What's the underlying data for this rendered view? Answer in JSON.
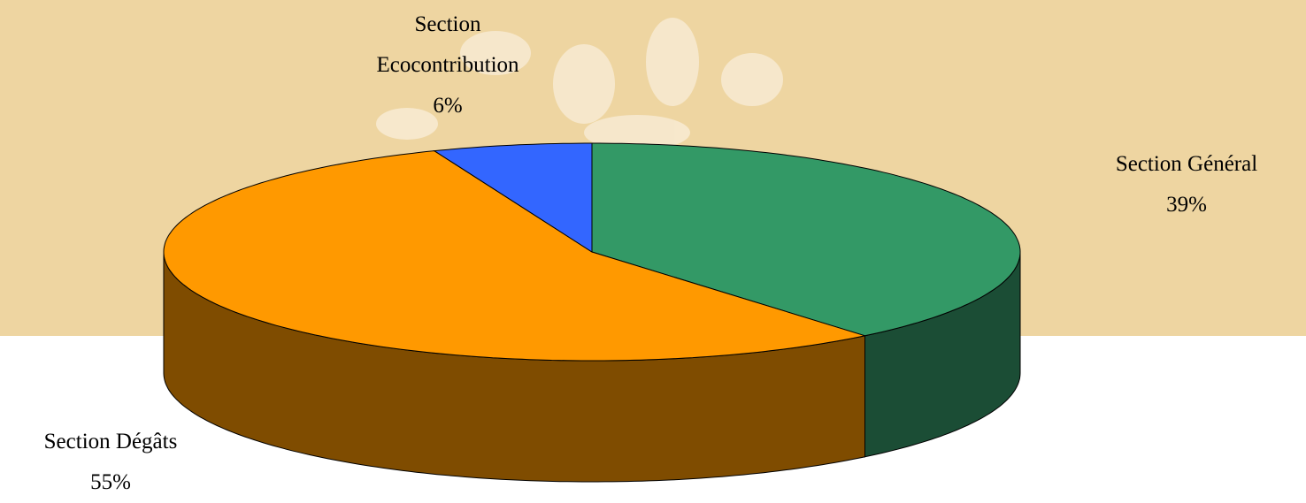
{
  "chart_data": {
    "type": "pie3d",
    "categories": [
      "Section Général",
      "Section Dégâts",
      "Section Ecocontribution"
    ],
    "values": [
      39,
      55,
      6
    ],
    "value_labels": [
      "39%",
      "55%",
      "6%"
    ],
    "colors": [
      "#339966",
      "#ff9900",
      "#3366ff"
    ],
    "side_colors": [
      "#1b4d35",
      "#7f4c00",
      "#1a3380"
    ]
  }
}
